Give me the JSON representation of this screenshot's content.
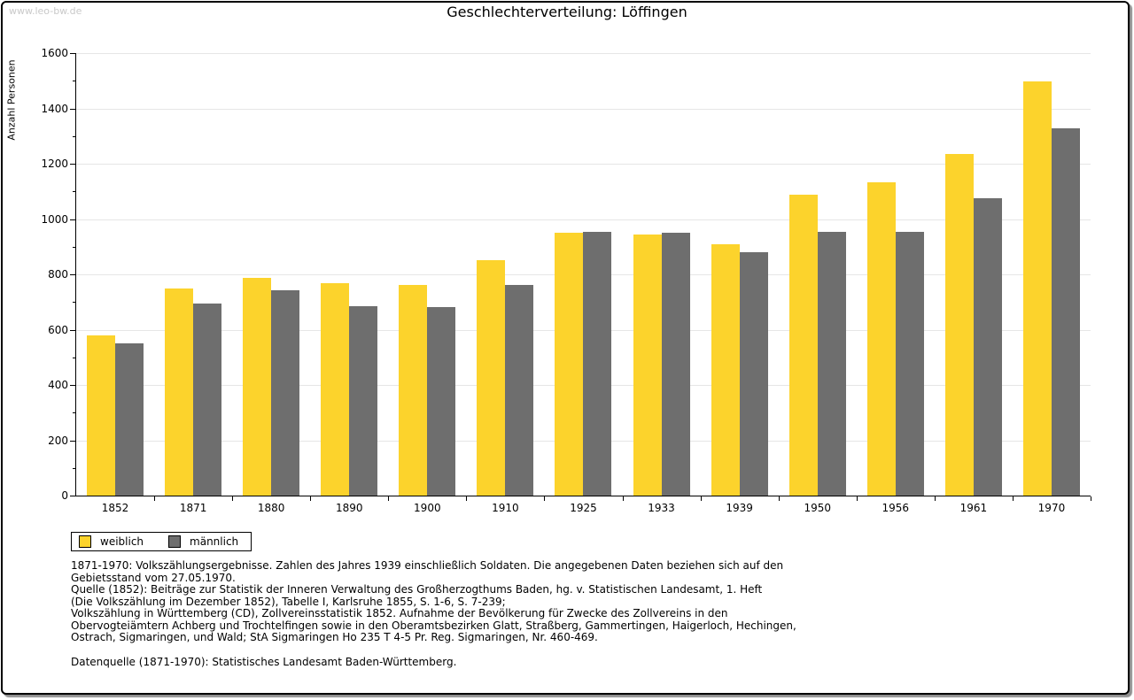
{
  "watermark": "www.leo-bw.de",
  "title": "Geschlechterverteilung: Löffingen",
  "y_axis_label": "Anzahl Personen",
  "colors": {
    "weiblich": "#FCD32C",
    "maennlich": "#6E6E6E",
    "gridline": "#E6E6E6",
    "watermark": "#C9C9C9",
    "frame_border": "#000000",
    "frame_shadow": "#8F8F8F"
  },
  "legend": [
    {
      "label": "weiblich",
      "color": "#FCD32C"
    },
    {
      "label": "männlich",
      "color": "#6E6E6E"
    }
  ],
  "chart_data": {
    "type": "bar",
    "title": "Geschlechterverteilung: Löffingen",
    "xlabel": "",
    "ylabel": "Anzahl Personen",
    "ylim": [
      0,
      1600
    ],
    "ytick_interval": 200,
    "ytick_minor_interval": 100,
    "yticks": [
      0,
      200,
      400,
      600,
      800,
      1000,
      1200,
      1400,
      1600
    ],
    "grid": true,
    "legend_position": "bottom-left",
    "categories": [
      "1852",
      "1871",
      "1880",
      "1890",
      "1900",
      "1910",
      "1925",
      "1933",
      "1939",
      "1950",
      "1956",
      "1961",
      "1970"
    ],
    "series": [
      {
        "name": "weiblich",
        "color": "#FCD32C",
        "values": [
          578,
          750,
          786,
          768,
          763,
          852,
          951,
          943,
          909,
          1088,
          1133,
          1235,
          1498
        ]
      },
      {
        "name": "männlich",
        "color": "#6E6E6E",
        "values": [
          551,
          693,
          742,
          685,
          682,
          763,
          954,
          951,
          880,
          953,
          954,
          1076,
          1328
        ]
      }
    ]
  },
  "footnotes": [
    "1871-1970: Volkszählungsergebnisse. Zahlen des Jahres 1939 einschließlich Soldaten. Die angegebenen Daten beziehen sich auf den",
    "Gebietsstand vom 27.05.1970.",
    "Quelle (1852): Beiträge zur Statistik der Inneren Verwaltung des Großherzogthums Baden, hg. v. Statistischen Landesamt, 1. Heft",
    "(Die Volkszählung im Dezember 1852), Tabelle I, Karlsruhe 1855, S. 1-6, S. 7-239;",
    "Volkszählung in Württemberg (CD), Zollvereinsstatistik 1852. Aufnahme der Bevölkerung für Zwecke des Zollvereins in den",
    "Obervogteiämtern Achberg und Trochtelfingen sowie in den Oberamtsbezirken Glatt, Straßberg, Gammertingen, Haigerloch, Hechingen,",
    "Ostrach, Sigmaringen, und Wald; StA Sigmaringen Ho 235 T 4-5 Pr. Reg. Sigmaringen, Nr. 460-469."
  ],
  "datasource": "Datenquelle (1871-1970): Statistisches Landesamt Baden-Württemberg."
}
